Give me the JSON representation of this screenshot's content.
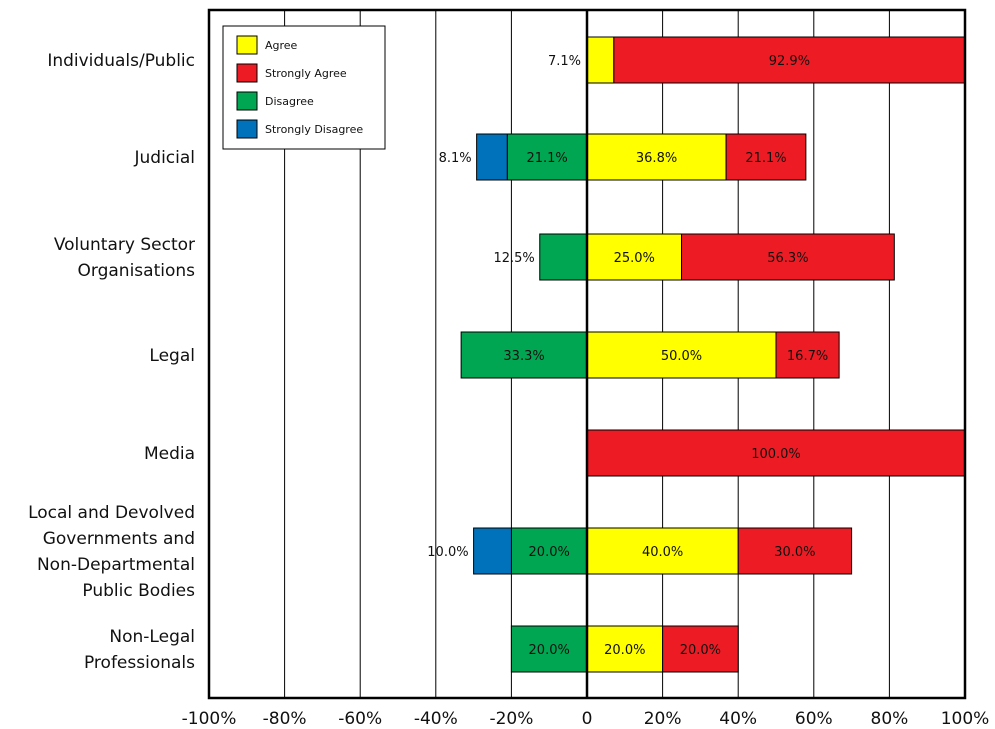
{
  "chart_data": {
    "type": "bar",
    "orientation": "horizontal",
    "stacked": "diverging",
    "categories": [
      "Individuals/Public",
      "Judicial",
      "Voluntary Sector Organisations",
      "Legal",
      "Media",
      "Local and Devolved Governments and Non-Departmental Public Bodies",
      "Non-Legal Professionals"
    ],
    "category_lines": [
      [
        "Individuals/Public"
      ],
      [
        "Judicial"
      ],
      [
        "Voluntary Sector",
        "Organisations"
      ],
      [
        "Legal"
      ],
      [
        "Media"
      ],
      [
        "Local and Devolved",
        "Governments and",
        "Non-Departmental",
        "Public Bodies"
      ],
      [
        "Non-Legal",
        "Professionals"
      ]
    ],
    "series": [
      {
        "name": "Agree",
        "color": "#ffff00",
        "side": "positive",
        "values": [
          7.1,
          36.8,
          25.0,
          50.0,
          0,
          40.0,
          20.0
        ],
        "labels": [
          "7.1%",
          "36.8%",
          "25.0%",
          "50.0%",
          "",
          "40.0%",
          "20.0%"
        ]
      },
      {
        "name": "Strongly Agree",
        "color": "#ed1c24",
        "side": "positive",
        "values": [
          92.9,
          21.1,
          56.3,
          16.7,
          100.0,
          30.0,
          20.0
        ],
        "labels": [
          "92.9%",
          "21.1%",
          "56.3%",
          "16.7%",
          "100.0%",
          "30.0%",
          "20.0%"
        ]
      },
      {
        "name": "Disagree",
        "color": "#00a651",
        "side": "negative",
        "values": [
          0,
          21.1,
          12.5,
          33.3,
          0,
          20.0,
          20.0
        ],
        "labels": [
          "",
          "21.1%",
          "12.5%",
          "33.3%",
          "",
          "20.0%",
          "20.0%"
        ]
      },
      {
        "name": "Strongly Disagree",
        "color": "#0072bc",
        "side": "negative",
        "values": [
          0,
          8.1,
          0,
          0,
          0,
          10.0,
          0
        ],
        "labels": [
          "",
          "8.1%",
          "",
          "",
          "",
          "10.0%",
          ""
        ]
      }
    ],
    "xlim": [
      -100,
      100
    ],
    "xticks": [
      -100,
      -80,
      -60,
      -40,
      -20,
      0,
      20,
      40,
      60,
      80,
      100
    ],
    "xtick_labels": [
      "-100%",
      "-80%",
      "-60%",
      "-40%",
      "-20%",
      "0",
      "20%",
      "40%",
      "60%",
      "80%",
      "100%"
    ],
    "grid": "vertical",
    "legend": {
      "position": "top-left",
      "entries": [
        "Agree",
        "Strongly Agree",
        "Disagree",
        "Strongly Disagree"
      ]
    }
  }
}
